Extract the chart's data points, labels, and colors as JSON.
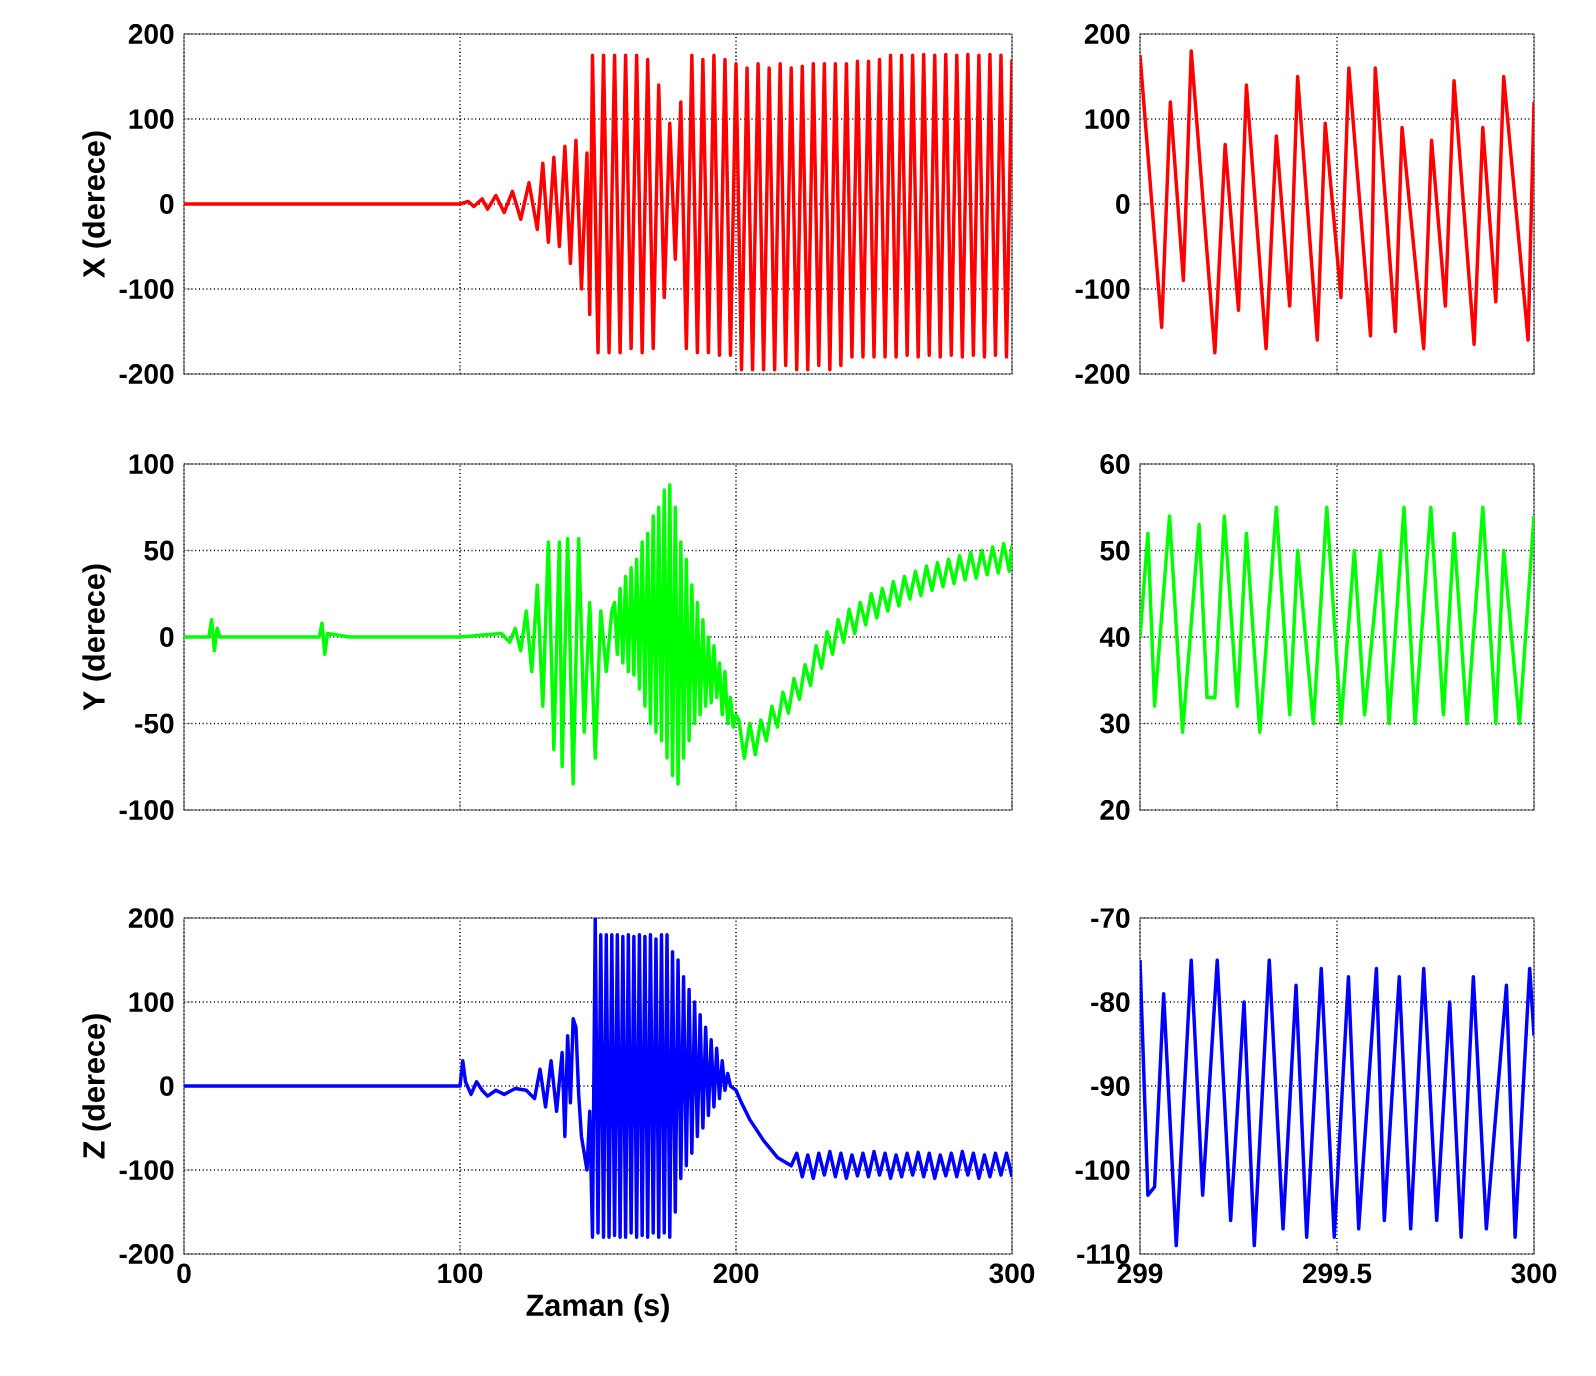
{
  "chart_data": [
    {
      "type": "line",
      "ylabel": "X (derece)",
      "color": "#ff0000",
      "grid": true,
      "tick_labels": "y",
      "xlim": [
        0,
        300
      ],
      "xticks": [
        0,
        100,
        200,
        300
      ],
      "ylim": [
        -200,
        200
      ],
      "yticks": [
        -200,
        -100,
        0,
        100,
        200
      ],
      "x": [
        0,
        100,
        103,
        105,
        108,
        110,
        113,
        116,
        119,
        122,
        125,
        128,
        130,
        132,
        134,
        136,
        138,
        140,
        142,
        144,
        146,
        147,
        148,
        150,
        152,
        154,
        156,
        158,
        160,
        162,
        164,
        166,
        168,
        170,
        172,
        174,
        176,
        178,
        180,
        182,
        184,
        186,
        188,
        190,
        192,
        194,
        196,
        198,
        200,
        202,
        204,
        206,
        208,
        210,
        212,
        214,
        216,
        218,
        220,
        222,
        224,
        226,
        228,
        230,
        232,
        234,
        236,
        238,
        240,
        242,
        244,
        246,
        248,
        250,
        252,
        254,
        256,
        258,
        260,
        262,
        264,
        266,
        268,
        270,
        272,
        274,
        276,
        278,
        280,
        282,
        284,
        286,
        288,
        290,
        292,
        294,
        296,
        298,
        300
      ],
      "values": [
        0,
        0,
        3,
        -3,
        6,
        -6,
        10,
        -10,
        15,
        -18,
        25,
        -30,
        48,
        -45,
        55,
        -50,
        68,
        -70,
        75,
        -100,
        60,
        -130,
        175,
        -175,
        175,
        -175,
        175,
        -175,
        175,
        -170,
        175,
        -175,
        170,
        -170,
        140,
        -110,
        95,
        -65,
        120,
        -170,
        175,
        -175,
        170,
        -175,
        175,
        -178,
        170,
        -178,
        165,
        -195,
        160,
        -195,
        165,
        -195,
        160,
        -195,
        165,
        -190,
        160,
        -195,
        162,
        -195,
        165,
        -190,
        165,
        -195,
        165,
        -190,
        165,
        -180,
        168,
        -180,
        168,
        -180,
        170,
        -180,
        175,
        -180,
        175,
        -178,
        175,
        -180,
        176,
        -178,
        175,
        -180,
        176,
        -178,
        175,
        -180,
        176,
        -178,
        175,
        -180,
        176,
        -178,
        175,
        -180,
        170
      ]
    },
    {
      "type": "line",
      "color": "#ff0000",
      "grid": true,
      "tick_labels": "y",
      "xlim": [
        299,
        300
      ],
      "xticks": [
        299,
        299.5,
        300
      ],
      "ylim": [
        -200,
        200
      ],
      "yticks": [
        -200,
        -100,
        0,
        100,
        200
      ],
      "x": [
        299,
        299.055,
        299.077,
        299.11,
        299.13,
        299.19,
        299.216,
        299.25,
        299.27,
        299.32,
        299.346,
        299.38,
        299.4,
        299.45,
        299.47,
        299.51,
        299.53,
        299.585,
        299.597,
        299.648,
        299.665,
        299.72,
        299.74,
        299.775,
        299.797,
        299.848,
        299.87,
        299.903,
        299.923,
        299.985,
        300
      ],
      "values": [
        175,
        -145,
        120,
        -90,
        180,
        -175,
        70,
        -125,
        140,
        -170,
        80,
        -120,
        150,
        -160,
        95,
        -110,
        160,
        -155,
        160,
        -150,
        90,
        -170,
        75,
        -120,
        145,
        -165,
        90,
        -115,
        150,
        -160,
        120
      ]
    },
    {
      "type": "line",
      "ylabel": "Y (derece)",
      "color": "#00ff00",
      "grid": true,
      "tick_labels": "y",
      "xlim": [
        0,
        300
      ],
      "xticks": [
        0,
        100,
        200,
        300
      ],
      "ylim": [
        -100,
        100
      ],
      "yticks": [
        -100,
        -50,
        0,
        50,
        100
      ],
      "x": [
        0,
        9,
        10,
        11,
        12,
        13,
        20,
        49,
        50,
        51,
        52,
        60,
        100,
        115,
        118,
        120,
        122,
        124,
        126,
        128,
        130,
        132,
        134,
        136,
        137,
        139,
        141,
        143,
        145,
        147,
        149,
        151,
        153,
        155,
        156,
        157,
        158,
        159,
        160,
        161,
        162,
        163,
        164,
        165,
        166,
        167,
        168,
        169,
        170,
        171,
        172,
        173,
        174,
        175,
        176,
        177,
        178,
        179,
        180,
        181,
        182,
        183,
        184,
        185,
        186,
        187,
        188,
        189,
        190,
        191,
        192,
        193,
        194,
        195,
        196,
        197,
        198,
        199,
        200,
        201,
        203,
        205,
        207,
        209,
        211,
        213,
        215,
        217,
        219,
        221,
        223,
        225,
        227,
        229,
        231,
        233,
        235,
        237,
        239,
        241,
        243,
        245,
        247,
        249,
        251,
        253,
        255,
        257,
        259,
        261,
        263,
        265,
        267,
        269,
        271,
        273,
        275,
        277,
        279,
        281,
        283,
        285,
        287,
        289,
        291,
        293,
        295,
        297,
        299,
        300
      ],
      "values": [
        0,
        0,
        10,
        -8,
        5,
        0,
        0,
        0,
        8,
        -10,
        2,
        0,
        0,
        2,
        -3,
        5,
        -8,
        15,
        -20,
        30,
        -40,
        55,
        -65,
        55,
        -75,
        57,
        -85,
        57,
        -55,
        20,
        -70,
        15,
        -20,
        15,
        20,
        -10,
        28,
        -15,
        35,
        -20,
        40,
        -22,
        45,
        -30,
        55,
        -40,
        60,
        -50,
        70,
        -55,
        75,
        -60,
        85,
        -70,
        88,
        -80,
        75,
        -85,
        55,
        -70,
        45,
        -60,
        30,
        -50,
        20,
        -45,
        10,
        -40,
        0,
        -38,
        -5,
        -35,
        -15,
        -45,
        -20,
        -50,
        -35,
        -52,
        -45,
        -48,
        -70,
        -50,
        -68,
        -48,
        -60,
        -40,
        -52,
        -32,
        -44,
        -24,
        -36,
        -16,
        -28,
        -5,
        -18,
        3,
        -10,
        10,
        -3,
        16,
        2,
        20,
        7,
        25,
        11,
        28,
        15,
        32,
        18,
        35,
        22,
        38,
        24,
        41,
        27,
        43,
        29,
        45,
        31,
        47,
        33,
        49,
        34,
        50,
        36,
        52,
        37,
        54,
        38,
        53
      ]
    },
    {
      "type": "line",
      "color": "#00ff00",
      "grid": true,
      "tick_labels": "y",
      "xlim": [
        299,
        300
      ],
      "xticks": [
        299,
        299.5,
        300
      ],
      "ylim": [
        20,
        60
      ],
      "yticks": [
        20,
        30,
        40,
        50,
        60
      ],
      "x": [
        299,
        299.02,
        299.037,
        299.075,
        299.108,
        299.15,
        299.17,
        299.19,
        299.214,
        299.247,
        299.27,
        299.304,
        299.346,
        299.38,
        299.4,
        299.44,
        299.474,
        299.51,
        299.544,
        299.57,
        299.61,
        299.632,
        299.67,
        299.698,
        299.738,
        299.77,
        299.797,
        299.83,
        299.87,
        299.903,
        299.923,
        299.963,
        300
      ],
      "values": [
        40,
        52,
        32,
        54,
        29,
        53,
        33,
        33,
        54,
        32,
        52,
        29,
        55,
        31,
        50,
        30,
        55,
        30,
        50,
        31,
        50,
        30,
        55,
        30,
        55,
        31,
        52,
        30,
        55,
        30,
        50,
        30,
        54
      ]
    },
    {
      "type": "line",
      "ylabel": "Z (derece)",
      "xlabel": "Zaman (s)",
      "color": "#0000ff",
      "grid": true,
      "xlim": [
        0,
        300
      ],
      "xticks": [
        0,
        100,
        200,
        300
      ],
      "ylim": [
        -200,
        200
      ],
      "yticks": [
        -200,
        -100,
        0,
        100,
        200
      ],
      "x": [
        0,
        100,
        101,
        102,
        104,
        106,
        108,
        110,
        113,
        116,
        120,
        124,
        127,
        129,
        131,
        133,
        135,
        137,
        138,
        139,
        140,
        141,
        142,
        143,
        144,
        145,
        146,
        147,
        148,
        149,
        150,
        151,
        152,
        153,
        154,
        155,
        156,
        157,
        158,
        159,
        160,
        161,
        162,
        163,
        164,
        165,
        166,
        167,
        168,
        169,
        170,
        171,
        172,
        173,
        174,
        175,
        176,
        177,
        178,
        179,
        180,
        181,
        182,
        183,
        184,
        185,
        186,
        187,
        188,
        189,
        190,
        191,
        192,
        193,
        194,
        195,
        196,
        197,
        198,
        200,
        202,
        205,
        210,
        215,
        220,
        222,
        224,
        226,
        228,
        230,
        232,
        234,
        236,
        238,
        240,
        242,
        244,
        246,
        248,
        250,
        252,
        254,
        256,
        258,
        260,
        262,
        264,
        266,
        268,
        270,
        272,
        274,
        276,
        278,
        280,
        282,
        284,
        286,
        288,
        290,
        292,
        294,
        296,
        298,
        300
      ],
      "values": [
        0,
        0,
        30,
        5,
        -10,
        5,
        -5,
        -12,
        -5,
        -10,
        -3,
        -5,
        -15,
        20,
        -25,
        30,
        -30,
        40,
        -60,
        60,
        -20,
        80,
        70,
        -10,
        -60,
        -80,
        -100,
        -30,
        -180,
        200,
        -175,
        180,
        -180,
        180,
        -180,
        180,
        -178,
        180,
        -180,
        178,
        -180,
        180,
        -175,
        178,
        -180,
        180,
        -178,
        178,
        -180,
        180,
        -175,
        175,
        -180,
        180,
        -175,
        180,
        -180,
        160,
        -150,
        150,
        -110,
        130,
        -95,
        115,
        -80,
        100,
        -60,
        85,
        -50,
        70,
        -35,
        55,
        -25,
        45,
        -15,
        30,
        -5,
        15,
        0,
        -5,
        -20,
        -40,
        -65,
        -85,
        -95,
        -80,
        -108,
        -82,
        -110,
        -80,
        -106,
        -78,
        -108,
        -80,
        -110,
        -82,
        -107,
        -80,
        -108,
        -78,
        -106,
        -80,
        -110,
        -82,
        -108,
        -80,
        -106,
        -79,
        -108,
        -80,
        -110,
        -82,
        -107,
        -80,
        -108,
        -78,
        -106,
        -80,
        -110,
        -82,
        -108,
        -80,
        -106,
        -80,
        -108
      ]
    },
    {
      "type": "line",
      "color": "#0000ff",
      "grid": true,
      "xlim": [
        299,
        300
      ],
      "xticks": [
        299,
        299.5,
        300
      ],
      "ylim": [
        -110,
        -70
      ],
      "yticks": [
        -110,
        -100,
        -90,
        -80,
        -70
      ],
      "x": [
        299,
        299.02,
        299.037,
        299.06,
        299.092,
        299.13,
        299.159,
        299.196,
        299.23,
        299.264,
        299.29,
        299.328,
        299.363,
        299.396,
        299.423,
        299.46,
        299.493,
        299.529,
        299.555,
        299.6,
        299.62,
        299.658,
        299.687,
        299.72,
        299.753,
        299.786,
        299.815,
        299.846,
        299.879,
        299.93,
        299.952,
        299.989,
        300
      ],
      "values": [
        -75,
        -103,
        -102,
        -79,
        -109,
        -75,
        -103,
        -75,
        -106,
        -80,
        -109,
        -75,
        -107,
        -78,
        -108,
        -76,
        -108,
        -77,
        -107,
        -76,
        -106,
        -77,
        -107,
        -76,
        -106,
        -80,
        -108,
        -77,
        -107,
        -78,
        -108,
        -76,
        -84
      ]
    }
  ]
}
